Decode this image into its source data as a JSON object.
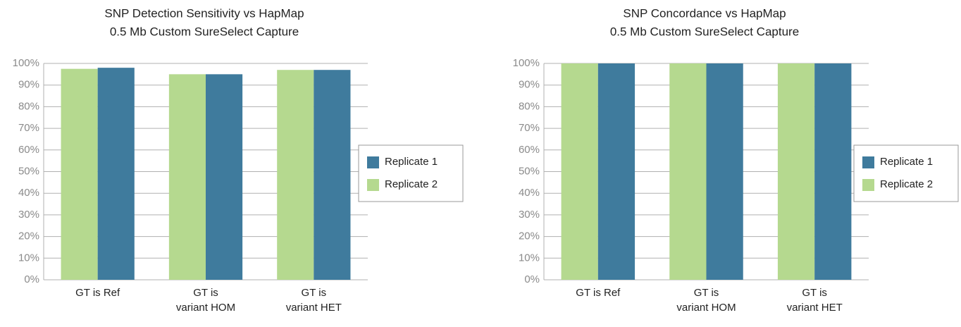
{
  "chart_data": [
    {
      "type": "bar",
      "title": "SNP Detection Sensitivity vs HapMap",
      "subtitle": "0.5 Mb Custom SureSelect Capture",
      "categories": [
        [
          "GT is Ref"
        ],
        [
          "GT is",
          "variant HOM"
        ],
        [
          "GT is",
          "variant HET"
        ]
      ],
      "series": [
        {
          "name": "Replicate 1",
          "color": "#3f7b9d",
          "values": [
            98,
            95,
            97
          ]
        },
        {
          "name": "Replicate 2",
          "color": "#b5d98f",
          "values": [
            97.5,
            95,
            97
          ]
        }
      ],
      "ylim": [
        0,
        100
      ],
      "yticks": [
        {
          "value": 0,
          "label": "0%"
        },
        {
          "value": 10,
          "label": "10%"
        },
        {
          "value": 20,
          "label": "20%"
        },
        {
          "value": 30,
          "label": "30%"
        },
        {
          "value": 40,
          "label": "40%"
        },
        {
          "value": 50,
          "label": "50%"
        },
        {
          "value": 60,
          "label": "60%"
        },
        {
          "value": 70,
          "label": "70%"
        },
        {
          "value": 80,
          "label": "80%"
        },
        {
          "value": 90,
          "label": "90%"
        },
        {
          "value": 100,
          "label": "100%"
        }
      ],
      "grid": true,
      "legend": "right"
    },
    {
      "type": "bar",
      "title": "SNP Concordance vs HapMap",
      "subtitle": "0.5 Mb Custom SureSelect Capture",
      "categories": [
        [
          "GT is Ref"
        ],
        [
          "GT is",
          "variant HOM"
        ],
        [
          "GT is",
          "variant HET"
        ]
      ],
      "series": [
        {
          "name": "Replicate 1",
          "color": "#3f7b9d",
          "values": [
            100,
            100,
            100
          ]
        },
        {
          "name": "Replicate 2",
          "color": "#b5d98f",
          "values": [
            100,
            100,
            100
          ]
        }
      ],
      "ylim": [
        0,
        100
      ],
      "yticks": [
        {
          "value": 0,
          "label": "0%"
        },
        {
          "value": 10,
          "label": "10%"
        },
        {
          "value": 20,
          "label": "20%"
        },
        {
          "value": 30,
          "label": "30%"
        },
        {
          "value": 40,
          "label": "40%"
        },
        {
          "value": 50,
          "label": "50%"
        },
        {
          "value": 60,
          "label": "60%"
        },
        {
          "value": 70,
          "label": "70%"
        },
        {
          "value": 80,
          "label": "80%"
        },
        {
          "value": 90,
          "label": "90%"
        },
        {
          "value": 100,
          "label": "100%"
        }
      ],
      "grid": true,
      "legend": "right"
    }
  ]
}
